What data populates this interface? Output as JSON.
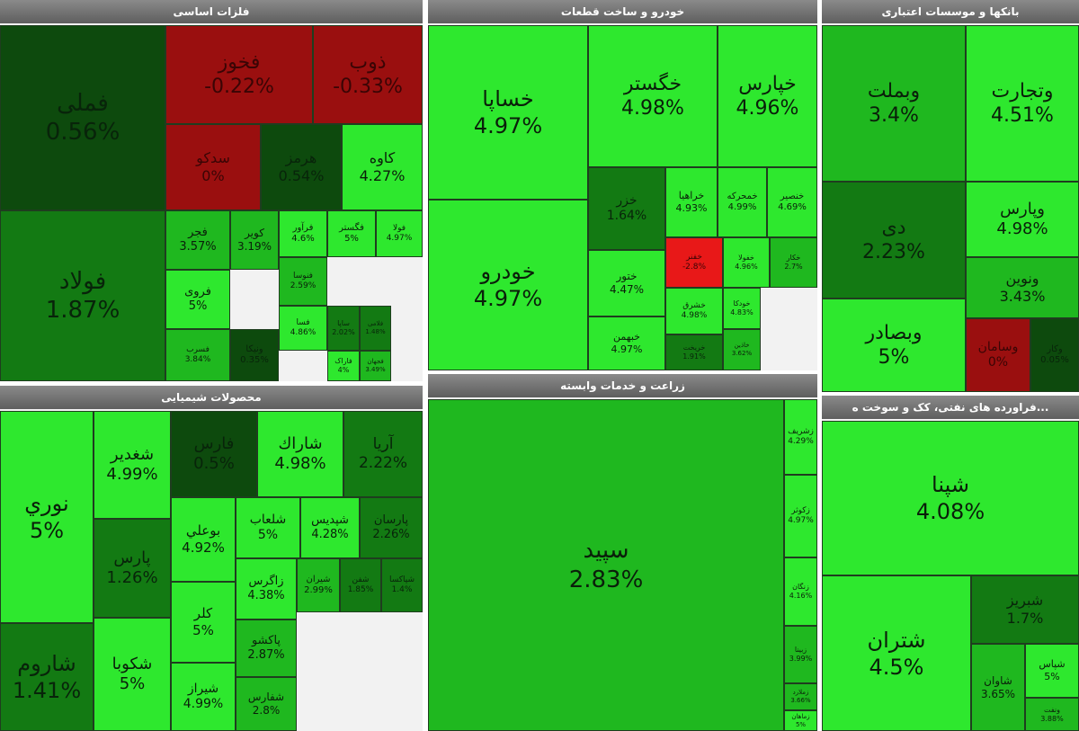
{
  "colors": {
    "green_bright": "#2ee82e",
    "green_mid": "#1fb81f",
    "green_dark": "#137a13",
    "green_darkest": "#0d4a0d",
    "red_bright": "#e81818",
    "red_dark": "#9a0f0f",
    "header": "#666666"
  },
  "panels": [
    {
      "id": "basic-metals",
      "title": "فلزات اساسی"
    },
    {
      "id": "auto",
      "title": "خودرو و ساخت قطعات"
    },
    {
      "id": "banks",
      "title": "بانکها و موسسات اعتباری"
    },
    {
      "id": "chemicals",
      "title": "محصولات شیمیایی"
    },
    {
      "id": "agriculture",
      "title": "زراعت و خدمات وابسته"
    },
    {
      "id": "petroleum",
      "title": "...فراورده های نفتی، کک و سوخت ه"
    }
  ],
  "chart_data": {
    "type": "heatmap",
    "description_units": "daily price change %",
    "groups": [
      {
        "sector": "فلزات اساسی",
        "tiles": [
          {
            "name": "فملی",
            "value": "0.56%"
          },
          {
            "name": "فولاد",
            "value": "1.87%"
          },
          {
            "name": "فخوز",
            "value": "-0.22%"
          },
          {
            "name": "ذوب",
            "value": "-0.33%"
          },
          {
            "name": "سدکو",
            "value": "0%"
          },
          {
            "name": "هرمز",
            "value": "0.54%"
          },
          {
            "name": "کاوه",
            "value": "4.27%"
          },
          {
            "name": "فجر",
            "value": "3.57%"
          },
          {
            "name": "کویر",
            "value": "3.19%"
          },
          {
            "name": "فرآور",
            "value": "4.6%"
          },
          {
            "name": "فگستر",
            "value": "5%"
          },
          {
            "name": "فولا",
            "value": "4.97%"
          },
          {
            "name": "فروی",
            "value": "5%"
          },
          {
            "name": "فنوسا",
            "value": "2.59%"
          },
          {
            "name": "فسا",
            "value": "4.86%"
          },
          {
            "name": "ساپا",
            "value": "2.02%"
          },
          {
            "name": "فلامی",
            "value": "1.48%"
          },
          {
            "name": "فسرب",
            "value": "3.84%"
          },
          {
            "name": "ونیکا",
            "value": "0.35%"
          },
          {
            "name": "فاراک",
            "value": "4%"
          },
          {
            "name": "فجهان",
            "value": "3.49%"
          }
        ]
      },
      {
        "sector": "خودرو و ساخت قطعات",
        "tiles": [
          {
            "name": "خساپا",
            "value": "4.97%"
          },
          {
            "name": "خودرو",
            "value": "4.97%"
          },
          {
            "name": "خگستر",
            "value": "4.98%"
          },
          {
            "name": "خپارس",
            "value": "4.96%"
          },
          {
            "name": "خزر",
            "value": "1.64%"
          },
          {
            "name": "خراهیا",
            "value": "4.93%"
          },
          {
            "name": "خمحرکه",
            "value": "4.99%"
          },
          {
            "name": "خنصیر",
            "value": "4.69%"
          },
          {
            "name": "ختور",
            "value": "4.47%"
          },
          {
            "name": "خبهمن",
            "value": "4.97%"
          },
          {
            "name": "خفنر",
            "value": "-2.8%"
          },
          {
            "name": "خفولا",
            "value": "4.96%"
          },
          {
            "name": "خکار",
            "value": "2.7%"
          },
          {
            "name": "خشرق",
            "value": "4.98%"
          },
          {
            "name": "خریخت",
            "value": "1.91%"
          },
          {
            "name": "خودکا",
            "value": "4.83%"
          },
          {
            "name": "خاذین",
            "value": "3.62%"
          }
        ]
      },
      {
        "sector": "بانکها و موسسات اعتباری",
        "tiles": [
          {
            "name": "وبملت",
            "value": "3.4%"
          },
          {
            "name": "وتجارت",
            "value": "4.51%"
          },
          {
            "name": "دی",
            "value": "2.23%"
          },
          {
            "name": "وپارس",
            "value": "4.98%"
          },
          {
            "name": "ونوین",
            "value": "3.43%"
          },
          {
            "name": "وبصادر",
            "value": "5%"
          },
          {
            "name": "وسامان",
            "value": "0%"
          },
          {
            "name": "وکار",
            "value": "0.05%"
          }
        ]
      },
      {
        "sector": "محصولات شیمیایی",
        "tiles": [
          {
            "name": "نوري",
            "value": "5%"
          },
          {
            "name": "شاروم",
            "value": "1.41%"
          },
          {
            "name": "شغدير",
            "value": "4.99%"
          },
          {
            "name": "پارس",
            "value": "1.26%"
          },
          {
            "name": "شکوبا",
            "value": "5%"
          },
          {
            "name": "فارس",
            "value": "0.5%"
          },
          {
            "name": "شاراك",
            "value": "4.98%"
          },
          {
            "name": "آريا",
            "value": "2.22%"
          },
          {
            "name": "بوعلي",
            "value": "4.92%"
          },
          {
            "name": "شلعاب",
            "value": "5%"
          },
          {
            "name": "شپديس",
            "value": "4.28%"
          },
          {
            "name": "پارسان",
            "value": "2.26%"
          },
          {
            "name": "كلر",
            "value": "5%"
          },
          {
            "name": "زاگرس",
            "value": "4.38%"
          },
          {
            "name": "شيران",
            "value": "2.99%"
          },
          {
            "name": "شفن",
            "value": "1.85%"
          },
          {
            "name": "شپاكسا",
            "value": "1.4%"
          },
          {
            "name": "شيراز",
            "value": "4.99%"
          },
          {
            "name": "پاكشو",
            "value": "2.87%"
          },
          {
            "name": "شفارس",
            "value": "2.8%"
          }
        ]
      },
      {
        "sector": "زراعت و خدمات وابسته",
        "tiles": [
          {
            "name": "سپید",
            "value": "2.83%"
          },
          {
            "name": "زشریف",
            "value": "4.29%"
          },
          {
            "name": "زکوثر",
            "value": "4.97%"
          },
          {
            "name": "زنگان",
            "value": "4.16%"
          },
          {
            "name": "زبینا",
            "value": "3.99%"
          },
          {
            "name": "زملارد",
            "value": "3.66%"
          },
          {
            "name": "زماهان",
            "value": "5%"
          }
        ]
      },
      {
        "sector": "فراورده های نفتی، کک و سوخت هسته ای",
        "tiles": [
          {
            "name": "شپنا",
            "value": "4.08%"
          },
          {
            "name": "شتران",
            "value": "4.5%"
          },
          {
            "name": "شبریز",
            "value": "1.7%"
          },
          {
            "name": "شاوان",
            "value": "3.65%"
          },
          {
            "name": "شپاس",
            "value": "5%"
          },
          {
            "name": "ونفت",
            "value": "3.88%"
          }
        ]
      }
    ]
  }
}
